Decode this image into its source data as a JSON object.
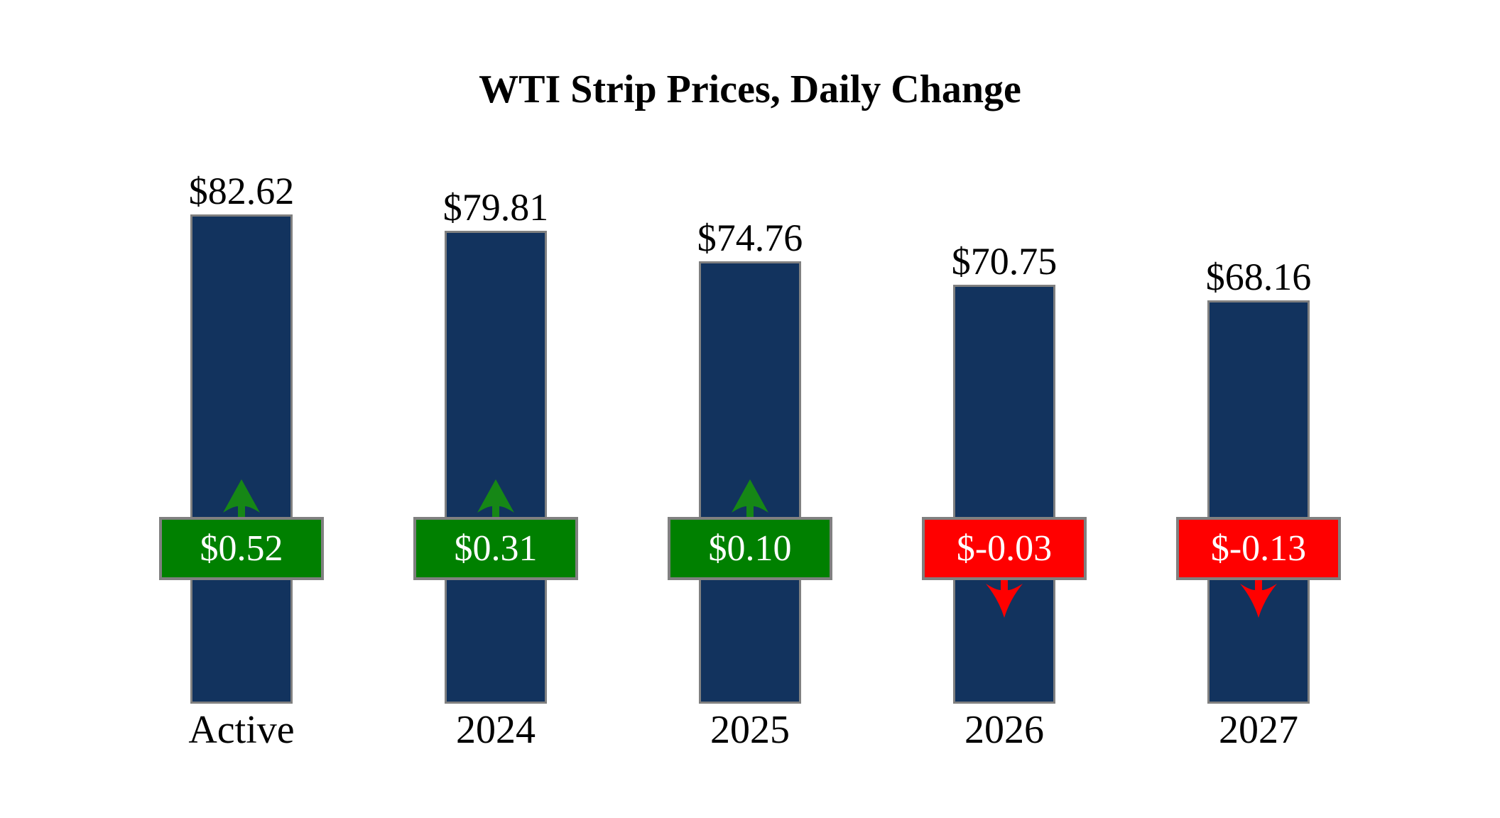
{
  "title": "WTI Strip Prices, Daily Change",
  "chart_data": {
    "type": "bar",
    "title": "WTI Strip Prices, Daily Change",
    "categories": [
      "Active",
      "2024",
      "2025",
      "2026",
      "2027"
    ],
    "series": [
      {
        "name": "strip_price",
        "values": [
          82.62,
          79.81,
          74.76,
          70.75,
          68.16
        ],
        "labels": [
          "$82.62",
          "$79.81",
          "$74.76",
          "$70.75",
          "$68.16"
        ]
      },
      {
        "name": "daily_change",
        "values": [
          0.52,
          0.31,
          0.1,
          -0.03,
          -0.13
        ],
        "labels": [
          "$0.52",
          "$0.31",
          "$0.10",
          "$-0.03",
          "$-0.13"
        ]
      }
    ],
    "baseline": 0,
    "ylim": [
      0,
      90
    ],
    "grid": false,
    "legend": false,
    "axes_visible": false,
    "annotations": "daily change badges overlaid on bars with up/down arrows"
  },
  "colors": {
    "background": "#FFFFFF",
    "bar_fill": "#12335E",
    "bar_border": "#808080",
    "positive_fill": "#008000",
    "negative_fill": "#FF0000",
    "arrow_positive": "#168716",
    "arrow_negative": "#FF0000",
    "badge_border": "#808080",
    "badge_text": "#FFFFFF",
    "label_text": "#000000"
  }
}
